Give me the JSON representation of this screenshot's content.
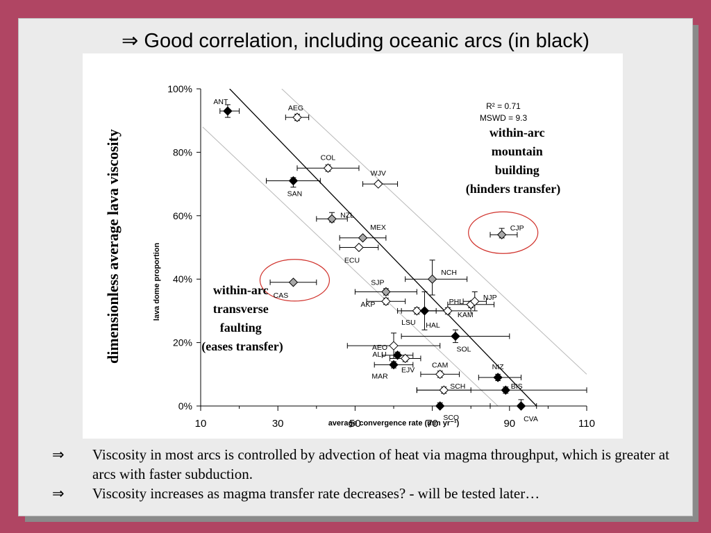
{
  "slide": {
    "title_arrow": "⇒",
    "title": "Good correlation, including oceanic arcs (in black)",
    "vertical_label": "dimensionless average lava viscosity",
    "annotation_left": [
      "within-arc",
      "transverse",
      "faulting",
      "(eases transfer)"
    ],
    "annotation_right": [
      "within-arc",
      "mountain",
      "building",
      "(hinders transfer)"
    ],
    "bullets": [
      {
        "symbol": "⇒",
        "text": "Viscosity in most arcs is controlled by advection of heat via magma throughput, which is greater at arcs with faster subduction."
      },
      {
        "symbol": "⇒",
        "text": "Viscosity increases as magma transfer rate decreases?  - will be tested later…"
      }
    ]
  },
  "chart_data": {
    "type": "scatter",
    "xlabel": "average convergence rate (mm yr⁻¹)",
    "ylabel": "lava dome proportion",
    "xlim": [
      10,
      110
    ],
    "ylim": [
      0,
      100
    ],
    "x_ticks": [
      "10",
      "30",
      "50",
      "70",
      "90",
      "110"
    ],
    "y_ticks": [
      "0%",
      "20%",
      "40%",
      "60%",
      "80%",
      "100%"
    ],
    "stats": [
      "R² = 0.71",
      "MSWD = 9.3"
    ],
    "fit_line": {
      "x": [
        17.5,
        97.0
      ],
      "y": [
        100,
        0
      ]
    },
    "confidence_bands": [
      {
        "x": [
          10.5,
          87.0
        ],
        "y": [
          88,
          0
        ]
      },
      {
        "x": [
          31.0,
          110.0
        ],
        "y": [
          100,
          10
        ]
      }
    ],
    "highlight_circles": [
      "CAS",
      "CJP"
    ],
    "points": [
      {
        "label": "ANT",
        "x": 17,
        "y": 93,
        "xerr": [
          15,
          20
        ],
        "yerr": [
          91,
          95
        ],
        "fill": "black"
      },
      {
        "label": "AEG",
        "x": 35,
        "y": 91,
        "xerr": [
          32,
          38
        ],
        "yerr": [
          92,
          90
        ],
        "fill": "white"
      },
      {
        "label": "COL",
        "x": 43,
        "y": 75,
        "xerr": [
          35,
          51
        ],
        "yerr": [
          76,
          74
        ],
        "fill": "white"
      },
      {
        "label": "WJV",
        "x": 56,
        "y": 70,
        "xerr": [
          52,
          61
        ],
        "yerr": [
          70,
          70
        ],
        "fill": "white"
      },
      {
        "label": "SAN",
        "x": 34,
        "y": 71,
        "xerr": [
          27,
          41
        ],
        "yerr": [
          72,
          69
        ],
        "fill": "black"
      },
      {
        "label": "NZL",
        "x": 44,
        "y": 59,
        "xerr": [
          40,
          48
        ],
        "yerr": [
          61,
          58
        ],
        "fill": "gray"
      },
      {
        "label": "MEX",
        "x": 52,
        "y": 53,
        "xerr": [
          46,
          58
        ],
        "yerr": [
          53,
          53
        ],
        "fill": "gray"
      },
      {
        "label": "ECU",
        "x": 51,
        "y": 50,
        "xerr": [
          46,
          56
        ],
        "yerr": [
          50,
          50
        ],
        "fill": "white"
      },
      {
        "label": "CJP",
        "x": 88,
        "y": 54,
        "xerr": [
          85,
          92
        ],
        "yerr": [
          56,
          53
        ],
        "fill": "gray"
      },
      {
        "label": "CAS",
        "x": 34,
        "y": 39,
        "xerr": [
          28,
          40
        ],
        "yerr": [
          39,
          39
        ],
        "fill": "gray"
      },
      {
        "label": "NCH",
        "x": 70,
        "y": 40,
        "xerr": [
          63,
          79
        ],
        "yerr": [
          46,
          35
        ],
        "fill": "gray"
      },
      {
        "label": "SJP",
        "x": 58,
        "y": 36,
        "xerr": [
          50,
          66
        ],
        "yerr": [
          37,
          35
        ],
        "fill": "gray"
      },
      {
        "label": "AKP",
        "x": 58,
        "y": 33,
        "xerr": [
          53,
          63
        ],
        "yerr": [
          34,
          32
        ],
        "fill": "white"
      },
      {
        "label": "LSU",
        "x": 66,
        "y": 30,
        "xerr": [
          61,
          71
        ],
        "yerr": [
          31,
          29
        ],
        "fill": "white"
      },
      {
        "label": "HAL",
        "x": 68,
        "y": 30,
        "xerr": [
          62,
          74
        ],
        "yerr": [
          36,
          24
        ],
        "fill": "black"
      },
      {
        "label": "PHL",
        "x": 74,
        "y": 30,
        "xerr": [
          68,
          80
        ],
        "yerr": [
          31,
          29
        ],
        "fill": "white"
      },
      {
        "label": "KAM",
        "x": 80,
        "y": 32,
        "xerr": [
          74,
          86
        ],
        "yerr": [
          33,
          31
        ],
        "fill": "white"
      },
      {
        "label": "NJP",
        "x": 81,
        "y": 33,
        "xerr": [
          78,
          84
        ],
        "yerr": [
          36,
          30
        ],
        "fill": "white"
      },
      {
        "label": "AEO",
        "x": 60,
        "y": 19,
        "xerr": [
          48,
          72
        ],
        "yerr": [
          23,
          15
        ],
        "fill": "white"
      },
      {
        "label": "SOL",
        "x": 76,
        "y": 22,
        "xerr": [
          62,
          90
        ],
        "yerr": [
          24,
          20
        ],
        "fill": "black"
      },
      {
        "label": "ALU",
        "x": 61,
        "y": 16,
        "xerr": [
          57,
          65
        ],
        "yerr": [
          17,
          15
        ],
        "fill": "black"
      },
      {
        "label": "EJV",
        "x": 63,
        "y": 15,
        "xerr": [
          59,
          67
        ],
        "yerr": [
          16,
          14
        ],
        "fill": "white"
      },
      {
        "label": "MAR",
        "x": 60,
        "y": 13,
        "xerr": [
          55,
          65
        ],
        "yerr": [
          14,
          12
        ],
        "fill": "black"
      },
      {
        "label": "CAM",
        "x": 72,
        "y": 10,
        "xerr": [
          67,
          77
        ],
        "yerr": [
          11,
          9
        ],
        "fill": "white"
      },
      {
        "label": "SCH",
        "x": 73,
        "y": 5,
        "xerr": [
          66,
          80
        ],
        "yerr": [
          6,
          4
        ],
        "fill": "white"
      },
      {
        "label": "NIZ",
        "x": 87,
        "y": 9,
        "xerr": [
          82,
          93
        ],
        "yerr": [
          10,
          8
        ],
        "fill": "black"
      },
      {
        "label": "BIS",
        "x": 89,
        "y": 5,
        "xerr": [
          66,
          110
        ],
        "yerr": [
          6,
          4
        ],
        "fill": "black"
      },
      {
        "label": "SCO",
        "x": 72,
        "y": 0,
        "xerr": [
          72,
          72
        ],
        "yerr": [
          1,
          0
        ],
        "fill": "black"
      },
      {
        "label": "CVA",
        "x": 93,
        "y": 0,
        "xerr": [
          85,
          97
        ],
        "yerr": [
          2,
          0
        ],
        "fill": "black"
      }
    ]
  }
}
